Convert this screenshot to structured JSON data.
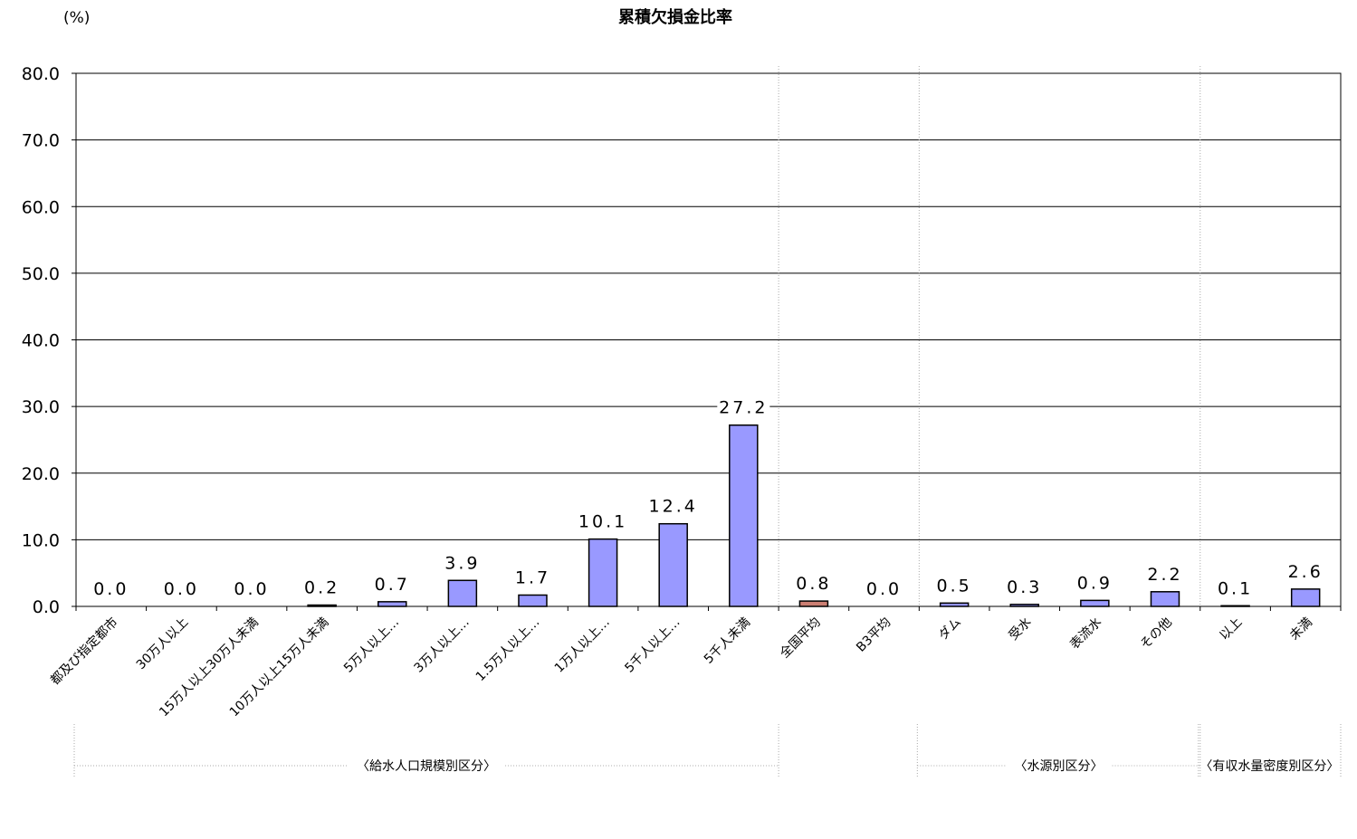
{
  "chart_data": {
    "type": "bar",
    "title": "累積欠損金比率",
    "unit_label": "(%)",
    "ylim": [
      0,
      80
    ],
    "yticks": [
      "0.0",
      "10.0",
      "20.0",
      "30.0",
      "40.0",
      "50.0",
      "60.0",
      "70.0",
      "80.0"
    ],
    "grid": "horizontal",
    "categories": [
      "都及び指定都市",
      "30万人以上",
      "15万人以上30万人未満",
      "10万人以上15万人未満",
      "5万人以上…",
      "3万人以上…",
      "1.5万人以上…",
      "1万人以上…",
      "5千人以上…",
      "5千人未満",
      "全国平均",
      "B3平均",
      "ダム",
      "受水",
      "表流水",
      "その他",
      "以上",
      "未満"
    ],
    "values": [
      0.0,
      0.0,
      0.0,
      0.2,
      0.7,
      3.9,
      1.7,
      10.1,
      12.4,
      27.2,
      0.8,
      0.0,
      0.5,
      0.3,
      0.9,
      2.2,
      0.1,
      2.6
    ],
    "value_labels": [
      "0.0",
      "0.0",
      "0.0",
      "0.2",
      "0.7",
      "3.9",
      "1.7",
      "10.1",
      "12.4",
      "27.2",
      "0.8",
      "0.0",
      "0.5",
      "0.3",
      "0.9",
      "2.2",
      "0.1",
      "2.6"
    ],
    "bar_colors": [
      "#9999ff",
      "#9999ff",
      "#9999ff",
      "#9999ff",
      "#9999ff",
      "#9999ff",
      "#9999ff",
      "#9999ff",
      "#9999ff",
      "#9999ff",
      "#cc7f73",
      "#9999ff",
      "#9999ff",
      "#9999ff",
      "#9999ff",
      "#9999ff",
      "#9999ff",
      "#9999ff"
    ],
    "groups": [
      {
        "label": "〈給水人口規模別区分〉",
        "from": 0,
        "to": 9
      },
      {
        "label": "〈水源別区分〉",
        "from": 12,
        "to": 15
      },
      {
        "label": "〈有収水量密度別区分〉",
        "from": 16,
        "to": 17
      }
    ]
  }
}
